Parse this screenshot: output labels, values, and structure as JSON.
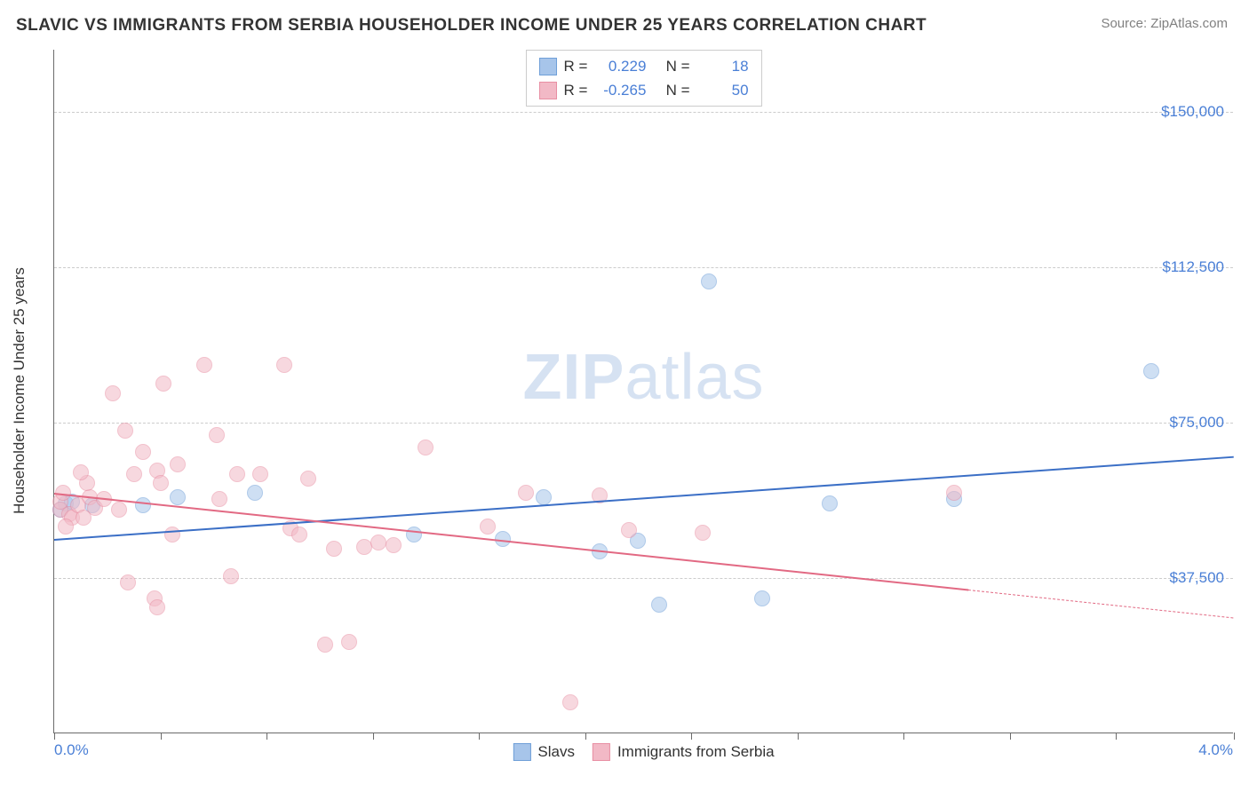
{
  "header": {
    "title": "SLAVIC VS IMMIGRANTS FROM SERBIA HOUSEHOLDER INCOME UNDER 25 YEARS CORRELATION CHART",
    "source": "Source: ZipAtlas.com"
  },
  "watermark": {
    "zip": "ZIP",
    "atlas": "atlas"
  },
  "chart": {
    "type": "scatter",
    "yaxis_label": "Householder Income Under 25 years",
    "background_color": "#ffffff",
    "grid_color": "#cccccc",
    "axis_color": "#6b6b6b",
    "label_color": "#4a7fd6",
    "xlim": [
      0.0,
      4.0
    ],
    "ylim": [
      0,
      165000
    ],
    "xtick_positions_pct": [
      0,
      9,
      18,
      27,
      36,
      45,
      54,
      63,
      72,
      81,
      90,
      100
    ],
    "xticks_labeled": [
      {
        "pos_pct": 0,
        "label": "0.0%",
        "align": "left"
      },
      {
        "pos_pct": 100,
        "label": "4.0%",
        "align": "right"
      }
    ],
    "yticks": [
      {
        "value": 37500,
        "label": "$37,500"
      },
      {
        "value": 75000,
        "label": "$75,000"
      },
      {
        "value": 112500,
        "label": "$112,500"
      },
      {
        "value": 150000,
        "label": "$150,000"
      }
    ],
    "series": [
      {
        "name": "Slavs",
        "marker_color": "#a7c5ea",
        "marker_border": "#6f9fd8",
        "marker_fill_opacity": 0.55,
        "marker_radius": 9,
        "line_color": "#3b6fc6",
        "r": "0.229",
        "n": "18",
        "trend": {
          "x1": 0.0,
          "y1": 47000,
          "x2": 4.0,
          "y2": 67000,
          "solid_until_x": 4.0
        },
        "points": [
          {
            "x": 0.04,
            "y": 55500
          },
          {
            "x": 0.02,
            "y": 54000
          },
          {
            "x": 0.06,
            "y": 56000
          },
          {
            "x": 0.13,
            "y": 55000
          },
          {
            "x": 0.3,
            "y": 55000
          },
          {
            "x": 0.42,
            "y": 57000
          },
          {
            "x": 0.68,
            "y": 58000
          },
          {
            "x": 1.22,
            "y": 48000
          },
          {
            "x": 1.52,
            "y": 47000
          },
          {
            "x": 1.66,
            "y": 57000
          },
          {
            "x": 1.85,
            "y": 44000
          },
          {
            "x": 1.98,
            "y": 46500
          },
          {
            "x": 2.05,
            "y": 31000
          },
          {
            "x": 2.22,
            "y": 109000
          },
          {
            "x": 2.4,
            "y": 32500
          },
          {
            "x": 2.63,
            "y": 55500
          },
          {
            "x": 3.05,
            "y": 56500
          },
          {
            "x": 3.72,
            "y": 87500
          }
        ]
      },
      {
        "name": "Immigrants from Serbia",
        "marker_color": "#f2b9c6",
        "marker_border": "#e88fa3",
        "marker_fill_opacity": 0.55,
        "marker_radius": 9,
        "line_color": "#e26983",
        "r": "-0.265",
        "n": "50",
        "trend": {
          "x1": 0.0,
          "y1": 58000,
          "x2": 4.0,
          "y2": 28000,
          "solid_until_x": 3.1
        },
        "points": [
          {
            "x": 0.02,
            "y": 54000
          },
          {
            "x": 0.02,
            "y": 56000
          },
          {
            "x": 0.05,
            "y": 53000
          },
          {
            "x": 0.03,
            "y": 58000
          },
          {
            "x": 0.06,
            "y": 52000
          },
          {
            "x": 0.04,
            "y": 50000
          },
          {
            "x": 0.08,
            "y": 55000
          },
          {
            "x": 0.1,
            "y": 52000
          },
          {
            "x": 0.12,
            "y": 57000
          },
          {
            "x": 0.11,
            "y": 60500
          },
          {
            "x": 0.14,
            "y": 54500
          },
          {
            "x": 0.17,
            "y": 56500
          },
          {
            "x": 0.09,
            "y": 63000
          },
          {
            "x": 0.2,
            "y": 82000
          },
          {
            "x": 0.22,
            "y": 54000
          },
          {
            "x": 0.25,
            "y": 36500
          },
          {
            "x": 0.27,
            "y": 62500
          },
          {
            "x": 0.24,
            "y": 73000
          },
          {
            "x": 0.3,
            "y": 68000
          },
          {
            "x": 0.35,
            "y": 63500
          },
          {
            "x": 0.37,
            "y": 84500
          },
          {
            "x": 0.34,
            "y": 32500
          },
          {
            "x": 0.36,
            "y": 60500
          },
          {
            "x": 0.42,
            "y": 65000
          },
          {
            "x": 0.4,
            "y": 48000
          },
          {
            "x": 0.35,
            "y": 30500
          },
          {
            "x": 0.51,
            "y": 89000
          },
          {
            "x": 0.55,
            "y": 72000
          },
          {
            "x": 0.56,
            "y": 56500
          },
          {
            "x": 0.62,
            "y": 62500
          },
          {
            "x": 0.6,
            "y": 38000
          },
          {
            "x": 0.7,
            "y": 62500
          },
          {
            "x": 0.78,
            "y": 89000
          },
          {
            "x": 0.8,
            "y": 49500
          },
          {
            "x": 0.83,
            "y": 48000
          },
          {
            "x": 0.86,
            "y": 61500
          },
          {
            "x": 0.92,
            "y": 21500
          },
          {
            "x": 0.95,
            "y": 44500
          },
          {
            "x": 1.05,
            "y": 45000
          },
          {
            "x": 1.0,
            "y": 22000
          },
          {
            "x": 1.1,
            "y": 46000
          },
          {
            "x": 1.15,
            "y": 45500
          },
          {
            "x": 1.26,
            "y": 69000
          },
          {
            "x": 1.47,
            "y": 50000
          },
          {
            "x": 1.6,
            "y": 58000
          },
          {
            "x": 1.75,
            "y": 7500
          },
          {
            "x": 1.95,
            "y": 49000
          },
          {
            "x": 1.85,
            "y": 57500
          },
          {
            "x": 2.2,
            "y": 48500
          },
          {
            "x": 3.05,
            "y": 58000
          }
        ]
      }
    ],
    "top_legend_labels": {
      "R": "R =",
      "N": "N ="
    },
    "bottom_legend": [
      {
        "label": "Slavs",
        "fill": "#a7c5ea",
        "border": "#6f9fd8"
      },
      {
        "label": "Immigrants from Serbia",
        "fill": "#f2b9c6",
        "border": "#e88fa3"
      }
    ]
  }
}
